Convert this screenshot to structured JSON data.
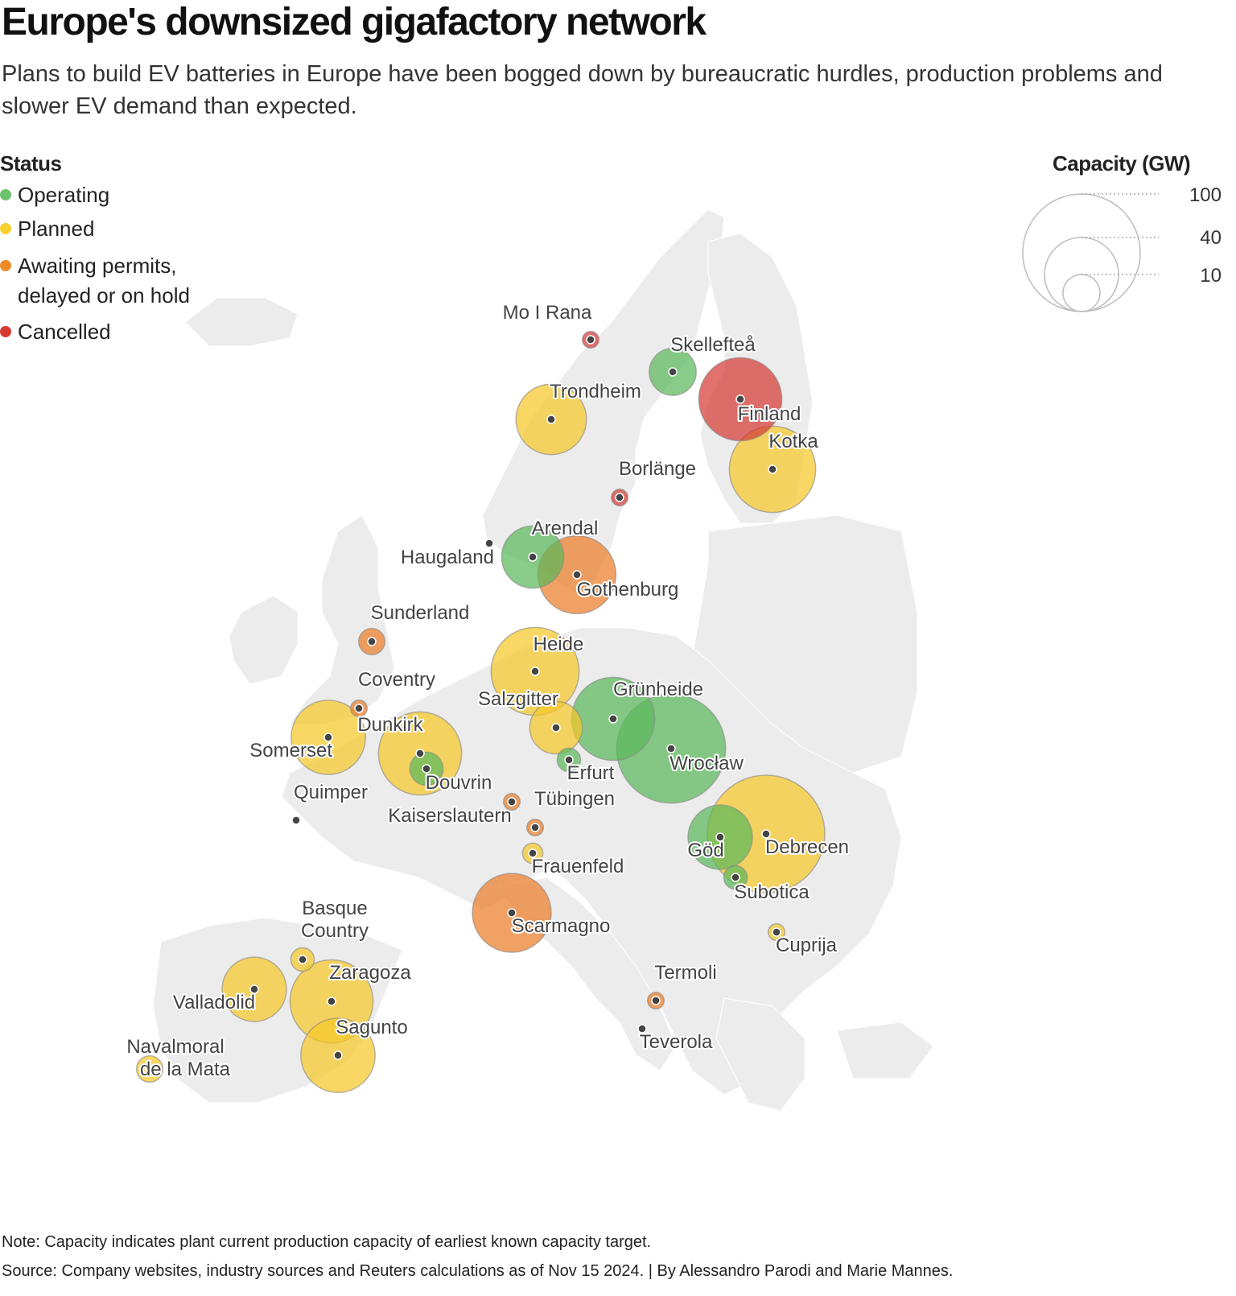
{
  "title": "Europe's downsized gigafactory network",
  "subtitle": "Plans to build EV batteries in Europe have been bogged down by bureaucratic hurdles, production problems and slower EV demand than expected.",
  "legend": {
    "title": "Status",
    "items": [
      {
        "label": "Operating",
        "color": "#6cc36b"
      },
      {
        "label": "Planned",
        "color": "#f7cf2e"
      },
      {
        "label": "Awaiting permits, delayed or on hold",
        "line1": "Awaiting permits,",
        "line2": "delayed or on hold",
        "color": "#ef8a2b"
      },
      {
        "label": "Cancelled",
        "color": "#d83a33"
      }
    ]
  },
  "capacity_legend": {
    "title": "Capacity (GW)",
    "values": [
      "100",
      "40",
      "10"
    ]
  },
  "map_data": {
    "type": "bubble-map",
    "status_colors": {
      "operating": "#5cb85c",
      "planned": "#f5c82a",
      "awaiting": "#ec7d27",
      "cancelled": "#d63a34"
    },
    "sites": [
      {
        "name": "Mo I Rana",
        "status": "cancelled",
        "gw": 2
      },
      {
        "name": "Skellefteå",
        "status": "operating",
        "gw": 16
      },
      {
        "name": "Finland",
        "status": "cancelled",
        "gw": 50
      },
      {
        "name": "Trondheim",
        "status": "planned",
        "gw": 36
      },
      {
        "name": "Kotka",
        "status": "planned",
        "gw": 54
      },
      {
        "name": "Borlänge",
        "status": "cancelled",
        "gw": 2
      },
      {
        "name": "Haugaland",
        "status": "awaiting",
        "gw": 0
      },
      {
        "name": "Arendal",
        "status": "operating",
        "gw": 28
      },
      {
        "name": "Gothenburg",
        "status": "awaiting",
        "gw": 44
      },
      {
        "name": "Sunderland",
        "status": "awaiting",
        "gw": 5
      },
      {
        "name": "Heide",
        "status": "planned",
        "gw": 56
      },
      {
        "name": "Coventry",
        "status": "awaiting",
        "gw": 2
      },
      {
        "name": "Grünheide",
        "status": "operating",
        "gw": 50
      },
      {
        "name": "Salzgitter",
        "status": "planned",
        "gw": 20
      },
      {
        "name": "Somerset",
        "status": "planned",
        "gw": 40
      },
      {
        "name": "Dunkirk",
        "status": "planned",
        "gw": 50
      },
      {
        "name": "Wrocław",
        "status": "operating",
        "gw": 86
      },
      {
        "name": "Erfurt",
        "status": "operating",
        "gw": 4
      },
      {
        "name": "Douvrin",
        "status": "operating",
        "gw": 8
      },
      {
        "name": "Quimper",
        "status": "operating",
        "gw": 0
      },
      {
        "name": "Tübingen",
        "status": "awaiting",
        "gw": 2
      },
      {
        "name": "Kaiserslautern",
        "status": "awaiting",
        "gw": 2
      },
      {
        "name": "Göd",
        "status": "operating",
        "gw": 30
      },
      {
        "name": "Debrecen",
        "status": "planned",
        "gw": 100
      },
      {
        "name": "Frauenfeld",
        "status": "planned",
        "gw": 3
      },
      {
        "name": "Subotica",
        "status": "operating",
        "gw": 4
      },
      {
        "name": "Scarmagno",
        "status": "awaiting",
        "gw": 45
      },
      {
        "name": "Basque Country",
        "status": "planned",
        "gw": 4
      },
      {
        "name": "Cuprija",
        "status": "planned",
        "gw": 2
      },
      {
        "name": "Zaragoza",
        "status": "planned",
        "gw": 50
      },
      {
        "name": "Termoli",
        "status": "awaiting",
        "gw": 2
      },
      {
        "name": "Valladolid",
        "status": "planned",
        "gw": 30
      },
      {
        "name": "Sagunto",
        "status": "planned",
        "gw": 40
      },
      {
        "name": "Teverola",
        "status": "operating",
        "gw": 0
      },
      {
        "name": "Navalmoral de la Mata",
        "line1": "Navalmoral",
        "line2": "de la Mata",
        "status": "planned",
        "gw": 5
      }
    ]
  },
  "footer": {
    "note": "Note: Capacity indicates plant current production capacity of earliest known capacity target.",
    "source": "Source: Company websites, industry sources and Reuters calculations as of Nov 15 2024. | By Alessandro Parodi and Marie Mannes."
  }
}
